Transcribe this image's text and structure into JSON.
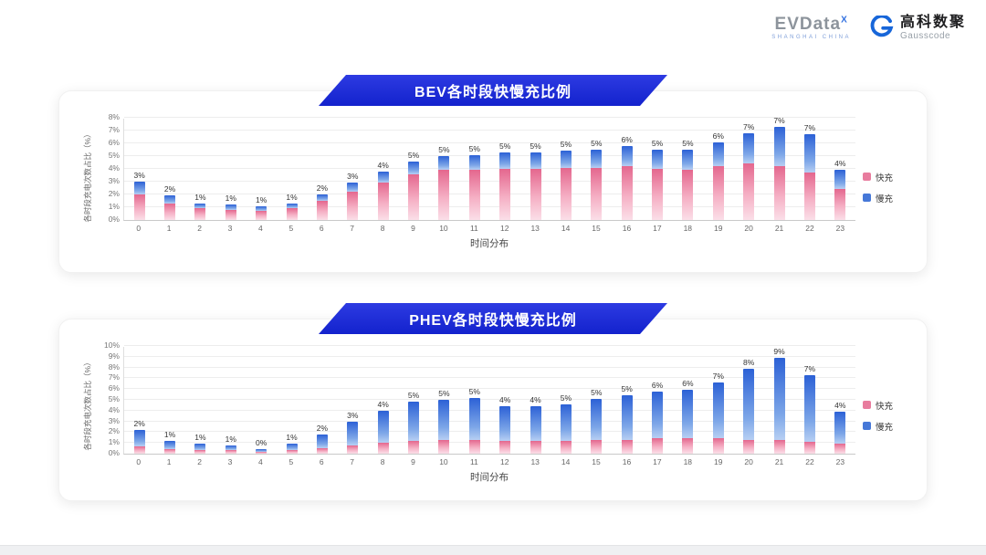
{
  "header": {
    "evdata": {
      "text": "EVData",
      "sup": "X",
      "sub": "SHANGHAI CHINA"
    },
    "gausscode": {
      "cn": "高科数聚",
      "en": "Gausscode"
    }
  },
  "chart_data": [
    {
      "type": "bar",
      "stacked": true,
      "title": "BEV各时段快慢充比例",
      "xlabel": "时间分布",
      "ylabel": "各时段充电次数占比（%）",
      "ylim": [
        0,
        8
      ],
      "ytick_step": 1,
      "grid": true,
      "legend_position": "right",
      "categories": [
        "0",
        "1",
        "2",
        "3",
        "4",
        "5",
        "6",
        "7",
        "8",
        "9",
        "10",
        "11",
        "12",
        "13",
        "14",
        "15",
        "16",
        "17",
        "18",
        "19",
        "20",
        "21",
        "22",
        "23"
      ],
      "series": [
        {
          "name": "快充",
          "color": "#e87c9e",
          "values": [
            2.0,
            1.3,
            0.9,
            0.8,
            0.7,
            0.9,
            1.5,
            2.2,
            2.9,
            3.6,
            3.9,
            3.9,
            4.0,
            4.0,
            4.1,
            4.1,
            4.2,
            4.0,
            3.9,
            4.2,
            4.4,
            4.2,
            3.7,
            2.4
          ]
        },
        {
          "name": "慢充",
          "color": "#4678d8",
          "values": [
            1.0,
            0.6,
            0.4,
            0.4,
            0.4,
            0.4,
            0.5,
            0.7,
            0.9,
            1.0,
            1.1,
            1.2,
            1.3,
            1.3,
            1.3,
            1.4,
            1.6,
            1.5,
            1.6,
            1.9,
            2.4,
            3.1,
            3.0,
            1.5
          ]
        }
      ],
      "totals": [
        "3%",
        "2%",
        "1%",
        "1%",
        "1%",
        "1%",
        "2%",
        "3%",
        "4%",
        "5%",
        "5%",
        "5%",
        "5%",
        "5%",
        "5%",
        "5%",
        "6%",
        "5%",
        "5%",
        "6%",
        "7%",
        "7%",
        "7%",
        "4%"
      ]
    },
    {
      "type": "bar",
      "stacked": true,
      "title": "PHEV各时段快慢充比例",
      "xlabel": "时间分布",
      "ylabel": "各时段充电次数占比（%）",
      "ylim": [
        0,
        10
      ],
      "ytick_step": 1,
      "grid": true,
      "legend_position": "right",
      "categories": [
        "0",
        "1",
        "2",
        "3",
        "4",
        "5",
        "6",
        "7",
        "8",
        "9",
        "10",
        "11",
        "12",
        "13",
        "14",
        "15",
        "16",
        "17",
        "18",
        "19",
        "20",
        "21",
        "22",
        "23"
      ],
      "series": [
        {
          "name": "快充",
          "color": "#e87c9e",
          "values": [
            0.7,
            0.4,
            0.3,
            0.3,
            0.2,
            0.3,
            0.5,
            0.8,
            1.0,
            1.2,
            1.3,
            1.3,
            1.2,
            1.2,
            1.2,
            1.3,
            1.3,
            1.4,
            1.4,
            1.4,
            1.3,
            1.3,
            1.1,
            0.9
          ]
        },
        {
          "name": "慢充",
          "color": "#4678d8",
          "values": [
            1.5,
            0.8,
            0.6,
            0.5,
            0.2,
            0.6,
            1.3,
            2.2,
            3.0,
            3.6,
            3.7,
            3.9,
            3.2,
            3.2,
            3.4,
            3.8,
            4.1,
            4.4,
            4.5,
            5.2,
            6.6,
            7.6,
            6.2,
            3.0
          ]
        }
      ],
      "totals": [
        "2%",
        "1%",
        "1%",
        "1%",
        "0%",
        "1%",
        "2%",
        "3%",
        "4%",
        "5%",
        "5%",
        "5%",
        "4%",
        "4%",
        "5%",
        "5%",
        "5%",
        "6%",
        "6%",
        "7%",
        "8%",
        "9%",
        "7%",
        "4%"
      ]
    }
  ]
}
